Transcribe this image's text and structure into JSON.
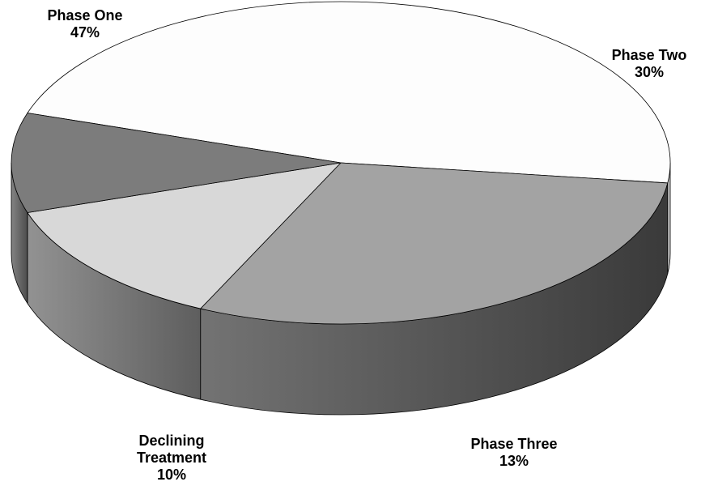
{
  "chart_data": {
    "type": "pie",
    "style": "3d",
    "legend": "none",
    "slices": [
      {
        "name": "Phase One",
        "label_lines": [
          "Phase One"
        ],
        "value": 47,
        "percent_label": "47%",
        "color": "#fdfdfd",
        "side_color": "#d4d4d4"
      },
      {
        "name": "Phase Two",
        "label_lines": [
          "Phase Two"
        ],
        "value": 30,
        "percent_label": "30%",
        "color": "#a3a3a3",
        "side_color": "#444444"
      },
      {
        "name": "Phase Three",
        "label_lines": [
          "Phase Three"
        ],
        "value": 13,
        "percent_label": "13%",
        "color": "#d8d8d8",
        "side_color": "#6e6e6e"
      },
      {
        "name": "Declining Treatment",
        "label_lines": [
          "Declining",
          "Treatment"
        ],
        "value": 10,
        "percent_label": "10%",
        "color": "#7c7c7c",
        "side_color": "#5a5a5a"
      }
    ]
  }
}
